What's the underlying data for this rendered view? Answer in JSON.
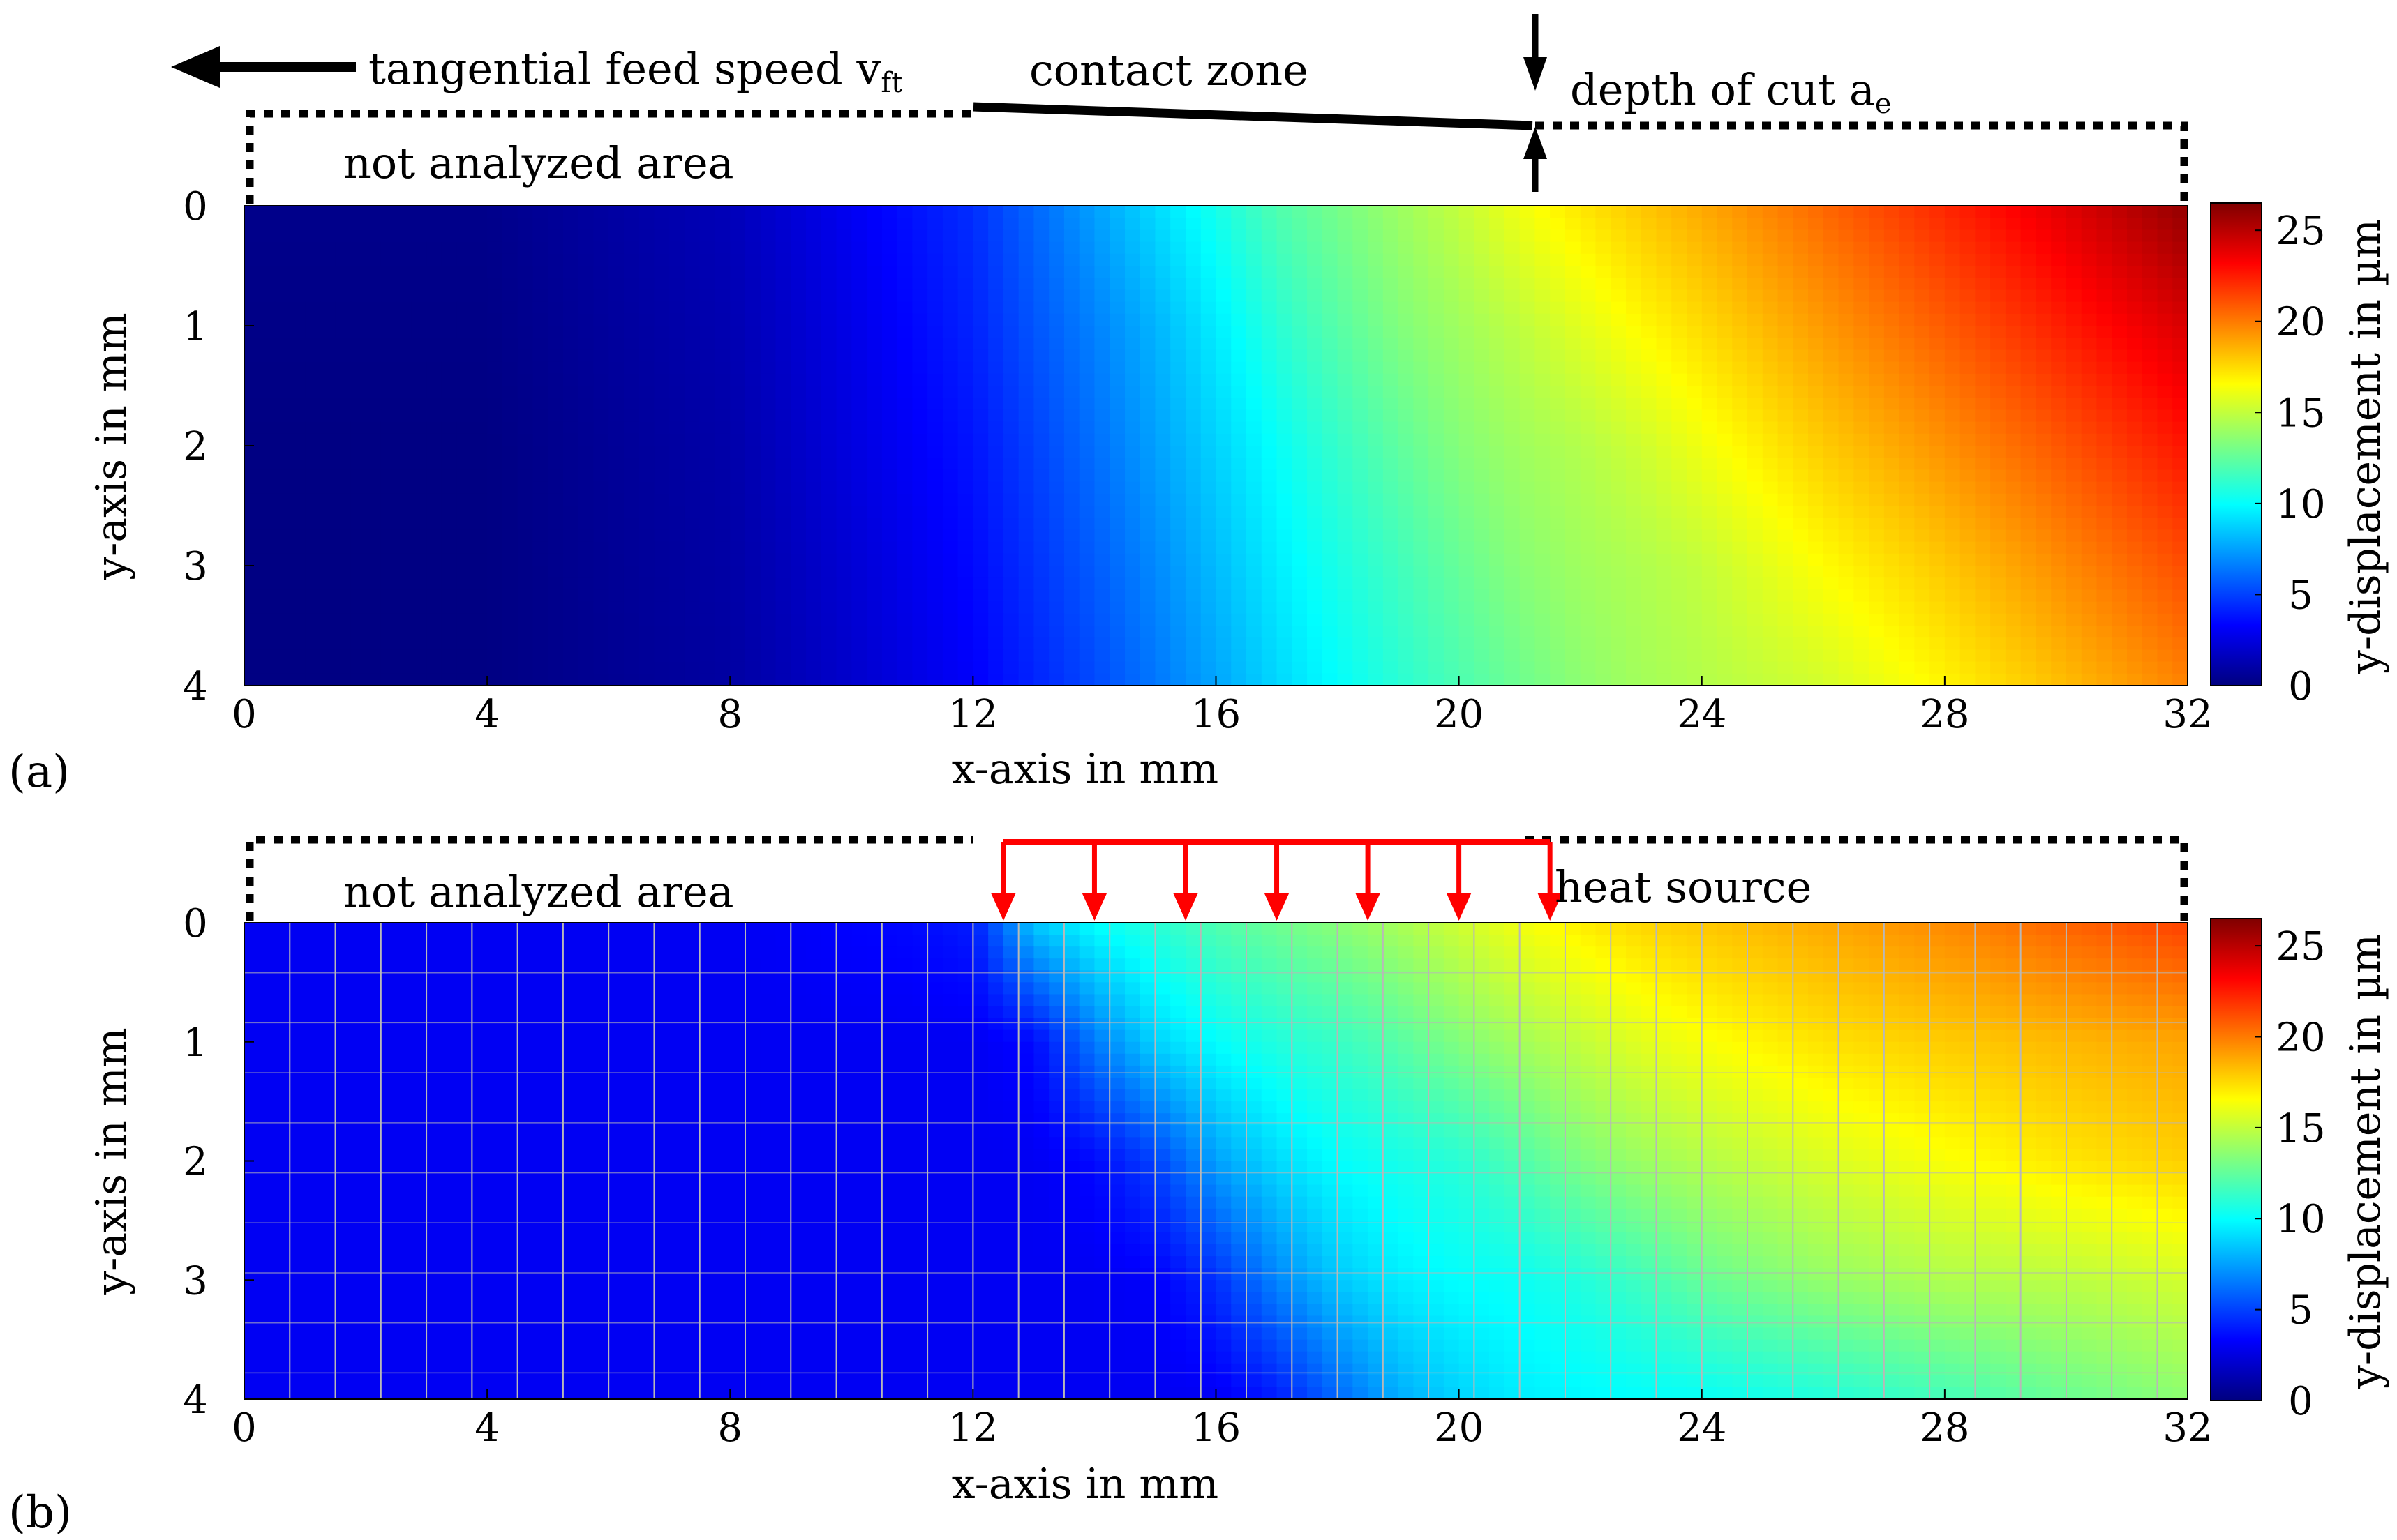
{
  "colors": {
    "jet": [
      "#00007f",
      "#0000ff",
      "#007fff",
      "#00ffff",
      "#7fff7f",
      "#ffff00",
      "#ff7f00",
      "#ff0000",
      "#7f0000"
    ],
    "arrow_red": "#ff0000",
    "mesh_grid": "#b8b8b8"
  },
  "colorbar": {
    "label": "y-displacement in µm",
    "ticks": [
      "0",
      "5",
      "10",
      "15",
      "20",
      "25"
    ],
    "range": [
      0,
      26.5
    ]
  },
  "annotations": {
    "feed_speed": "tangential feed speed v",
    "feed_speed_sub": "ft",
    "contact_zone": "contact zone",
    "depth_of_cut": "depth of cut a",
    "depth_of_cut_sub": "e",
    "not_analyzed": "not analyzed area",
    "heat_source": "heat source"
  },
  "chart_data": [
    {
      "panel": "(a)",
      "type": "heatmap",
      "title": "",
      "xlabel": "x-axis in mm",
      "ylabel": "y-axis in mm",
      "xlim": [
        0,
        32
      ],
      "ylim": [
        0,
        4
      ],
      "x_ticks": [
        "0",
        "4",
        "8",
        "12",
        "16",
        "20",
        "24",
        "28",
        "32"
      ],
      "y_ticks": [
        "0",
        "1",
        "2",
        "3",
        "4"
      ],
      "mesh_grid": false,
      "x_samples": [
        0,
        4,
        8,
        10,
        12,
        13,
        14,
        15,
        16,
        17,
        18,
        19,
        20,
        21,
        22,
        23,
        24,
        26,
        28,
        30,
        32
      ],
      "y_samples": [
        0,
        1,
        2,
        3,
        4
      ],
      "z": [
        [
          0.3,
          0.3,
          1.5,
          3,
          4.5,
          6,
          7.5,
          9,
          10.5,
          12,
          13,
          14,
          15,
          16.2,
          17.2,
          18,
          18.8,
          20.5,
          22.2,
          24,
          26
        ],
        [
          0.2,
          0.2,
          1.3,
          2.7,
          4.2,
          5.5,
          6.7,
          8,
          9.5,
          11,
          12.2,
          13.3,
          14.1,
          14.9,
          15.8,
          16.7,
          17.5,
          19.2,
          20.8,
          22.5,
          24.2
        ],
        [
          0.1,
          0.1,
          1.1,
          2.5,
          3.8,
          5,
          6.2,
          7.5,
          8.8,
          10.1,
          11.3,
          12.4,
          13.4,
          14.1,
          14.6,
          15.3,
          16.2,
          17.9,
          19.4,
          21,
          22.7
        ],
        [
          0.1,
          0.1,
          1,
          2.2,
          3.5,
          4.6,
          5.7,
          6.9,
          8.2,
          9.5,
          10.6,
          11.6,
          12.6,
          13.5,
          14.1,
          14.5,
          15,
          16.6,
          18,
          19.6,
          21.2
        ],
        [
          0.1,
          0.1,
          0.9,
          2,
          3.2,
          4.2,
          5.2,
          6.4,
          7.6,
          8.9,
          10,
          11,
          11.9,
          12.8,
          13.6,
          14.2,
          14.6,
          15.4,
          16.8,
          18.3,
          19.8
        ]
      ]
    },
    {
      "panel": "(b)",
      "type": "heatmap",
      "title": "",
      "xlabel": "x-axis in mm",
      "ylabel": "y-axis in mm",
      "xlim": [
        0,
        32
      ],
      "ylim": [
        0,
        4
      ],
      "x_ticks": [
        "0",
        "4",
        "8",
        "12",
        "16",
        "20",
        "24",
        "28",
        "32"
      ],
      "y_ticks": [
        "0",
        "1",
        "2",
        "3",
        "4"
      ],
      "mesh_grid": true,
      "heat_source_x": [
        12.5,
        21.5
      ],
      "x_samples": [
        0,
        4,
        8,
        11,
        12,
        13,
        14,
        15,
        16,
        17,
        18,
        19,
        20,
        21,
        22,
        23,
        24,
        26,
        28,
        30,
        32
      ],
      "y_samples": [
        0,
        1,
        2,
        3,
        4
      ],
      "z": [
        [
          3,
          3,
          3,
          3.5,
          4,
          8.5,
          10,
          11,
          12,
          12.8,
          13.5,
          14.3,
          15.3,
          16.2,
          17,
          17.6,
          18,
          18.8,
          19.6,
          20.6,
          21.5
        ],
        [
          3,
          3,
          3,
          3,
          3,
          3.5,
          6.5,
          8.8,
          10,
          10.8,
          11.4,
          12.2,
          13.3,
          14.2,
          15,
          15.8,
          16.4,
          17.3,
          17.9,
          18.4,
          18.9
        ],
        [
          3,
          3,
          3,
          3,
          3,
          3,
          3.5,
          5,
          7.5,
          9,
          10,
          10.5,
          11,
          12,
          13.2,
          14,
          14.6,
          15.6,
          16.4,
          17.2,
          17.8
        ],
        [
          3,
          3,
          3,
          3,
          3,
          3,
          3,
          3.2,
          4.5,
          6.8,
          8.5,
          9.5,
          10,
          10.2,
          10.8,
          11.6,
          12.6,
          13.8,
          14.5,
          14.8,
          15.4
        ],
        [
          3,
          3,
          3,
          3,
          3,
          3,
          3,
          3,
          3,
          4,
          6,
          7.8,
          8.8,
          9.5,
          9.8,
          10,
          10.1,
          10.8,
          11.7,
          12.7,
          13.6
        ]
      ]
    }
  ]
}
